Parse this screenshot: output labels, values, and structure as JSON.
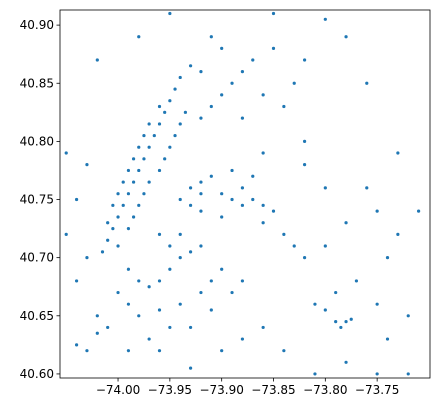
{
  "chart_data": {
    "type": "scatter",
    "color": "#1f77b4",
    "xlim": [
      -74.056,
      -73.699
    ],
    "ylim": [
      40.5965,
      40.913
    ],
    "xticks": [
      {
        "value": -74.0,
        "label": "−74.00"
      },
      {
        "value": -73.95,
        "label": "−73.95"
      },
      {
        "value": -73.9,
        "label": "−73.90"
      },
      {
        "value": -73.85,
        "label": "−73.85"
      },
      {
        "value": -73.8,
        "label": "−73.80"
      },
      {
        "value": -73.75,
        "label": "−73.75"
      }
    ],
    "yticks": [
      {
        "value": 40.6,
        "label": "40.60"
      },
      {
        "value": 40.65,
        "label": "40.65"
      },
      {
        "value": 40.7,
        "label": "40.70"
      },
      {
        "value": 40.75,
        "label": "40.75"
      },
      {
        "value": 40.8,
        "label": "40.80"
      },
      {
        "value": 40.85,
        "label": "40.85"
      },
      {
        "value": 40.9,
        "label": "40.90"
      }
    ],
    "x": [
      -74.015,
      -74.01,
      -74.005,
      -74.0,
      -73.995,
      -73.99,
      -73.985,
      -73.98,
      -73.975,
      -73.97,
      -73.965,
      -73.96,
      -73.955,
      -73.95,
      -73.945,
      -73.94,
      -73.93,
      -74.0,
      -73.99,
      -73.985,
      -73.98,
      -73.975,
      -73.97,
      -73.96,
      -73.955,
      -73.95,
      -73.945,
      -73.94,
      -73.935,
      -74.01,
      -74.005,
      -74.0,
      -73.995,
      -73.99,
      -73.985,
      -73.98,
      -73.975,
      -73.97,
      -73.96,
      -73.99,
      -73.98,
      -73.97,
      -73.96,
      -73.95,
      -73.94,
      -73.93,
      -73.92,
      -73.95,
      -73.96,
      -73.94,
      -73.99,
      -73.98,
      -73.96,
      -73.95,
      -73.94,
      -73.92,
      -73.91,
      -73.9,
      -74.0,
      -74.01,
      -74.02,
      -73.97,
      -73.96,
      -73.99,
      -74.03,
      -74.04,
      -74.02,
      -73.93,
      -73.91,
      -73.89,
      -73.88,
      -73.94,
      -73.93,
      -73.92,
      -73.91,
      -73.9,
      -73.89,
      -73.88,
      -73.87,
      -73.86,
      -73.85,
      -73.84,
      -73.83,
      -73.82,
      -73.8,
      -73.92,
      -73.9,
      -73.86,
      -73.87,
      -73.89,
      -73.88,
      -73.93,
      -73.92,
      -73.92,
      -73.91,
      -73.9,
      -73.89,
      -73.88,
      -73.87,
      -73.86,
      -73.84,
      -73.83,
      -73.9,
      -73.91,
      -73.92,
      -73.88,
      -73.85,
      -73.82,
      -73.79,
      -73.78,
      -73.785,
      -73.775,
      -73.8,
      -73.81,
      -73.79,
      -73.75,
      -73.74,
      -73.76,
      -73.78,
      -73.8,
      -73.82,
      -73.77,
      -73.75,
      -73.73,
      -73.71,
      -73.72,
      -73.74,
      -73.78,
      -73.81,
      -73.84,
      -73.86,
      -73.88,
      -73.9,
      -73.93,
      -74.05,
      -74.04,
      -74.03,
      -74.05,
      -74.03,
      -74.04,
      -73.95,
      -73.85,
      -73.8,
      -73.78,
      -73.76,
      -73.82,
      -73.86,
      -73.98,
      -74.02,
      -73.73,
      -73.72,
      -73.75
    ],
    "values": [
      40.705,
      40.715,
      40.725,
      40.735,
      40.745,
      40.755,
      40.765,
      40.775,
      40.785,
      40.795,
      40.805,
      40.815,
      40.825,
      40.835,
      40.845,
      40.855,
      40.865,
      40.71,
      40.725,
      40.735,
      40.745,
      40.755,
      40.765,
      40.775,
      40.785,
      40.795,
      40.805,
      40.815,
      40.825,
      40.73,
      40.745,
      40.755,
      40.765,
      40.775,
      40.785,
      40.795,
      40.805,
      40.815,
      40.83,
      40.69,
      40.68,
      40.675,
      40.68,
      40.69,
      40.7,
      40.705,
      40.71,
      40.71,
      40.72,
      40.72,
      40.66,
      40.65,
      40.655,
      40.64,
      40.66,
      40.67,
      40.68,
      40.69,
      40.67,
      40.64,
      40.635,
      40.63,
      40.62,
      40.62,
      40.62,
      40.625,
      40.65,
      40.64,
      40.655,
      40.67,
      40.68,
      40.75,
      40.76,
      40.765,
      40.77,
      40.755,
      40.75,
      40.745,
      40.75,
      40.745,
      40.74,
      40.72,
      40.71,
      40.7,
      40.71,
      40.74,
      40.735,
      40.73,
      40.77,
      40.775,
      40.76,
      40.745,
      40.755,
      40.82,
      40.83,
      40.84,
      40.85,
      40.86,
      40.87,
      40.84,
      40.83,
      40.85,
      40.88,
      40.89,
      40.86,
      40.82,
      40.88,
      40.87,
      40.645,
      40.645,
      40.64,
      40.647,
      40.655,
      40.66,
      40.67,
      40.74,
      40.7,
      40.76,
      40.73,
      40.76,
      40.78,
      40.68,
      40.66,
      40.72,
      40.74,
      40.65,
      40.63,
      40.61,
      40.6,
      40.62,
      40.64,
      40.63,
      40.62,
      40.605,
      40.72,
      40.75,
      40.78,
      40.79,
      40.7,
      40.68,
      40.91,
      40.91,
      40.905,
      40.89,
      40.85,
      40.8,
      40.79,
      40.89,
      40.87,
      40.79,
      40.6,
      40.6
    ]
  }
}
